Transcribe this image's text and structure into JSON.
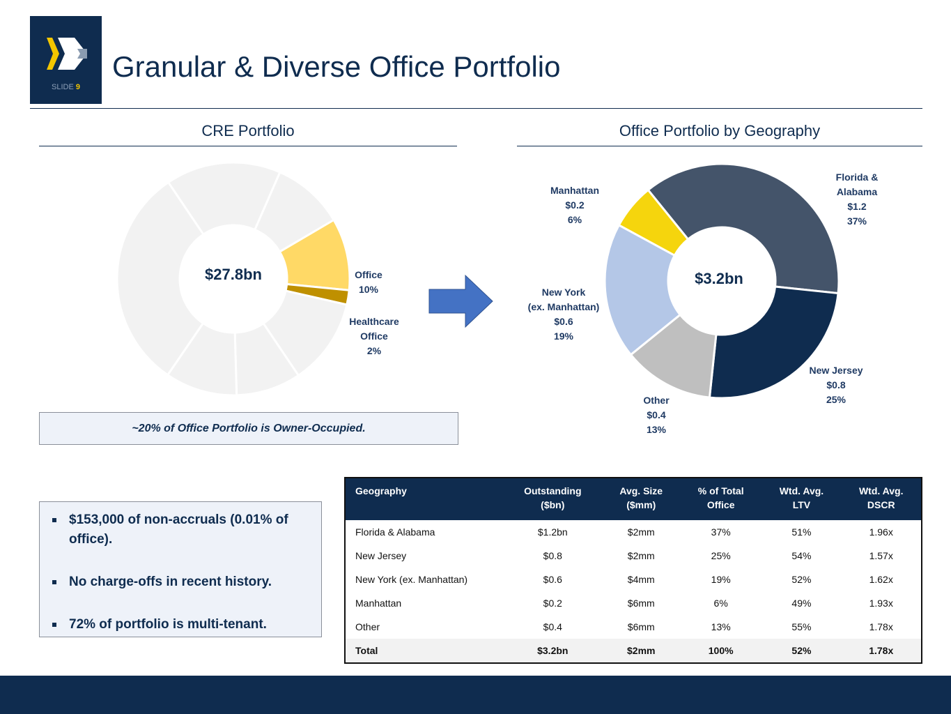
{
  "header": {
    "slide_label": "SLIDE",
    "slide_number": "9",
    "title": "Granular & Diverse Office Portfolio"
  },
  "colors": {
    "navy": "#0f2c4f",
    "slate": "#44546a",
    "light_blue": "#b4c7e7",
    "gray": "#bfbfbf",
    "yellow": "#f5d50d",
    "light_yellow": "#ffd966",
    "gold": "#bf9000",
    "arrow_blue": "#4472c4"
  },
  "cre_chart": {
    "title": "CRE Portfolio",
    "center_label": "$27.8bn",
    "labels": {
      "office": [
        "Office",
        "10%"
      ],
      "healthcare": [
        "Healthcare",
        "Office",
        "2%"
      ]
    }
  },
  "geo_chart": {
    "title": "Office Portfolio by Geography",
    "center_label": "$3.2bn",
    "labels": {
      "florida": [
        "Florida &",
        "Alabama",
        "$1.2",
        "37%"
      ],
      "new_jersey": [
        "New Jersey",
        "$0.8",
        "25%"
      ],
      "other": [
        "Other",
        "$0.4",
        "13%"
      ],
      "new_york": [
        "New York",
        "(ex. Manhattan)",
        "$0.6",
        "19%"
      ],
      "manhattan": [
        "Manhattan",
        "$0.2",
        "6%"
      ]
    }
  },
  "chart_data": [
    {
      "type": "pie",
      "title": "CRE Portfolio",
      "center_label": "$27.8bn",
      "categories": [
        "",
        "",
        "Office",
        "Healthcare Office",
        "",
        "",
        "",
        ""
      ],
      "values": [
        16,
        10,
        10,
        2,
        12,
        9,
        10,
        31
      ],
      "colors": [
        "#f2f2f2",
        "#f2f2f2",
        "#ffd966",
        "#bf9000",
        "#f2f2f2",
        "#f2f2f2",
        "#f2f2f2",
        "#f2f2f2"
      ]
    },
    {
      "type": "pie",
      "title": "Office Portfolio by Geography",
      "center_label": "$3.2bn",
      "categories": [
        "Florida & Alabama",
        "New Jersey",
        "Other",
        "New York (ex. Manhattan)",
        "Manhattan"
      ],
      "values": [
        1.2,
        0.8,
        0.4,
        0.6,
        0.2
      ],
      "percents": [
        37,
        25,
        13,
        19,
        6
      ],
      "colors": [
        "#44546a",
        "#0f2c4f",
        "#bfbfbf",
        "#b4c7e7",
        "#f5d50d"
      ]
    }
  ],
  "note": "~20% of Office Portfolio is Owner-Occupied.",
  "bullets": [
    "$153,000 of non-accruals (0.01% of office).",
    "No charge-offs in recent history.",
    "72% of portfolio is multi-tenant."
  ],
  "table": {
    "headers": [
      [
        "Geography"
      ],
      [
        "Outstanding",
        "($bn)"
      ],
      [
        "Avg. Size",
        "($mm)"
      ],
      [
        "% of Total",
        "Office"
      ],
      [
        "Wtd. Avg.",
        "LTV"
      ],
      [
        "Wtd. Avg.",
        "DSCR"
      ]
    ],
    "rows": [
      [
        "Florida & Alabama",
        "$1.2bn",
        "$2mm",
        "37%",
        "51%",
        "1.96x"
      ],
      [
        "New Jersey",
        "$0.8",
        "$2mm",
        "25%",
        "54%",
        "1.57x"
      ],
      [
        "New York (ex. Manhattan)",
        "$0.6",
        "$4mm",
        "19%",
        "52%",
        "1.62x"
      ],
      [
        "Manhattan",
        "$0.2",
        "$6mm",
        "6%",
        "49%",
        "1.93x"
      ],
      [
        "Other",
        "$0.4",
        "$6mm",
        "13%",
        "55%",
        "1.78x"
      ]
    ],
    "total": [
      "Total",
      "$3.2bn",
      "$2mm",
      "100%",
      "52%",
      "1.78x"
    ]
  }
}
